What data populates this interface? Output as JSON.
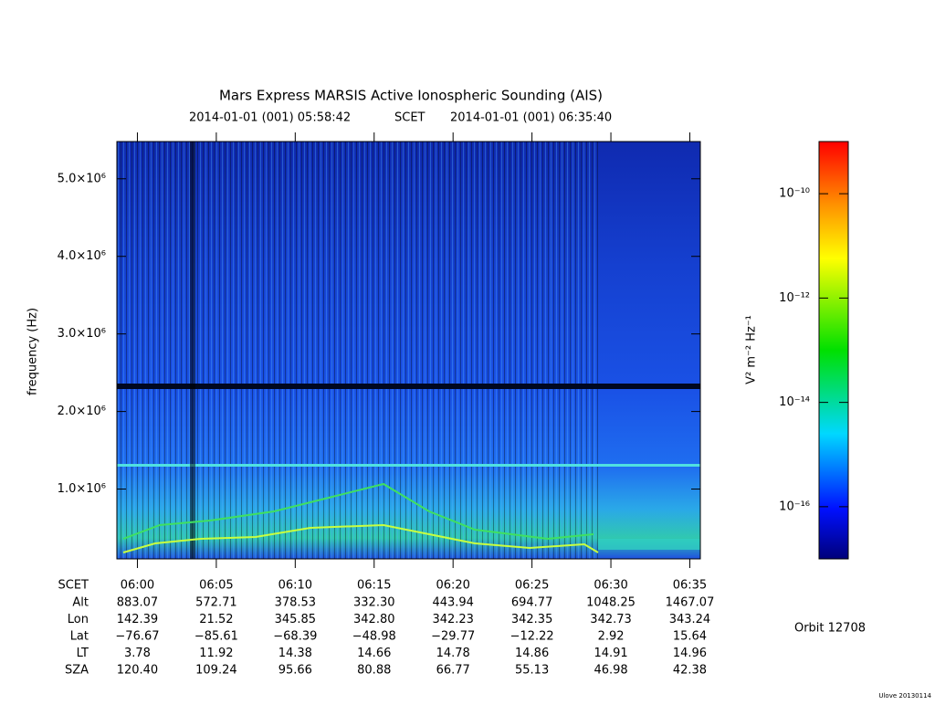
{
  "chart_data": {
    "type": "spectrogram",
    "title": "Mars Express MARSIS Active Ionospheric Sounding (AIS)",
    "start_time": "2014-01-01 (001) 05:58:42",
    "time_label": "SCET",
    "end_time": "2014-01-01 (001) 06:35:40",
    "ylabel": "frequency (Hz)",
    "xlim": [
      "05:58:42",
      "06:35:40"
    ],
    "xticks": [
      "06:00",
      "06:05",
      "06:10",
      "06:15",
      "06:20",
      "06:25",
      "06:30",
      "06:35"
    ],
    "ylim": [
      100000,
      5480000
    ],
    "yticks": [
      {
        "value": 1000000,
        "label": "1.0×10⁶"
      },
      {
        "value": 2000000,
        "label": "2.0×10⁶"
      },
      {
        "value": 3000000,
        "label": "3.0×10⁶"
      },
      {
        "value": 4000000,
        "label": "4.0×10⁶"
      },
      {
        "value": 5000000,
        "label": "5.0×10⁶"
      }
    ],
    "colorbar": {
      "label": "V² m⁻² Hz⁻¹",
      "log": true,
      "zlim": [
        1e-17,
        1e-09
      ],
      "ticks": [
        {
          "value": 1e-16,
          "label": "10⁻¹⁶"
        },
        {
          "value": 1e-14,
          "label": "10⁻¹⁴"
        },
        {
          "value": 1e-12,
          "label": "10⁻¹²"
        },
        {
          "value": 1e-10,
          "label": "10⁻¹⁰"
        }
      ]
    },
    "ephemeris": {
      "time_row": "SCET",
      "rows": [
        {
          "name": "Alt",
          "values": [
            "883.07",
            "572.71",
            "378.53",
            "332.30",
            "443.94",
            "694.77",
            "1048.25",
            "1467.07"
          ]
        },
        {
          "name": "Lon",
          "values": [
            "142.39",
            "21.52",
            "345.85",
            "342.80",
            "342.23",
            "342.35",
            "342.73",
            "343.24"
          ]
        },
        {
          "name": "Lat",
          "values": [
            "−76.67",
            "−85.61",
            "−68.39",
            "−48.98",
            "−29.77",
            "−12.22",
            "2.92",
            "15.64"
          ]
        },
        {
          "name": "LT",
          "values": [
            "3.78",
            "11.92",
            "14.38",
            "14.66",
            "14.78",
            "14.86",
            "14.91",
            "14.96"
          ]
        },
        {
          "name": "SZA",
          "values": [
            "120.40",
            "109.24",
            "95.66",
            "80.88",
            "66.77",
            "55.13",
            "46.98",
            "42.38"
          ]
        }
      ]
    },
    "orbit": "Orbit 12708",
    "footer": "Ulove 20130114"
  }
}
